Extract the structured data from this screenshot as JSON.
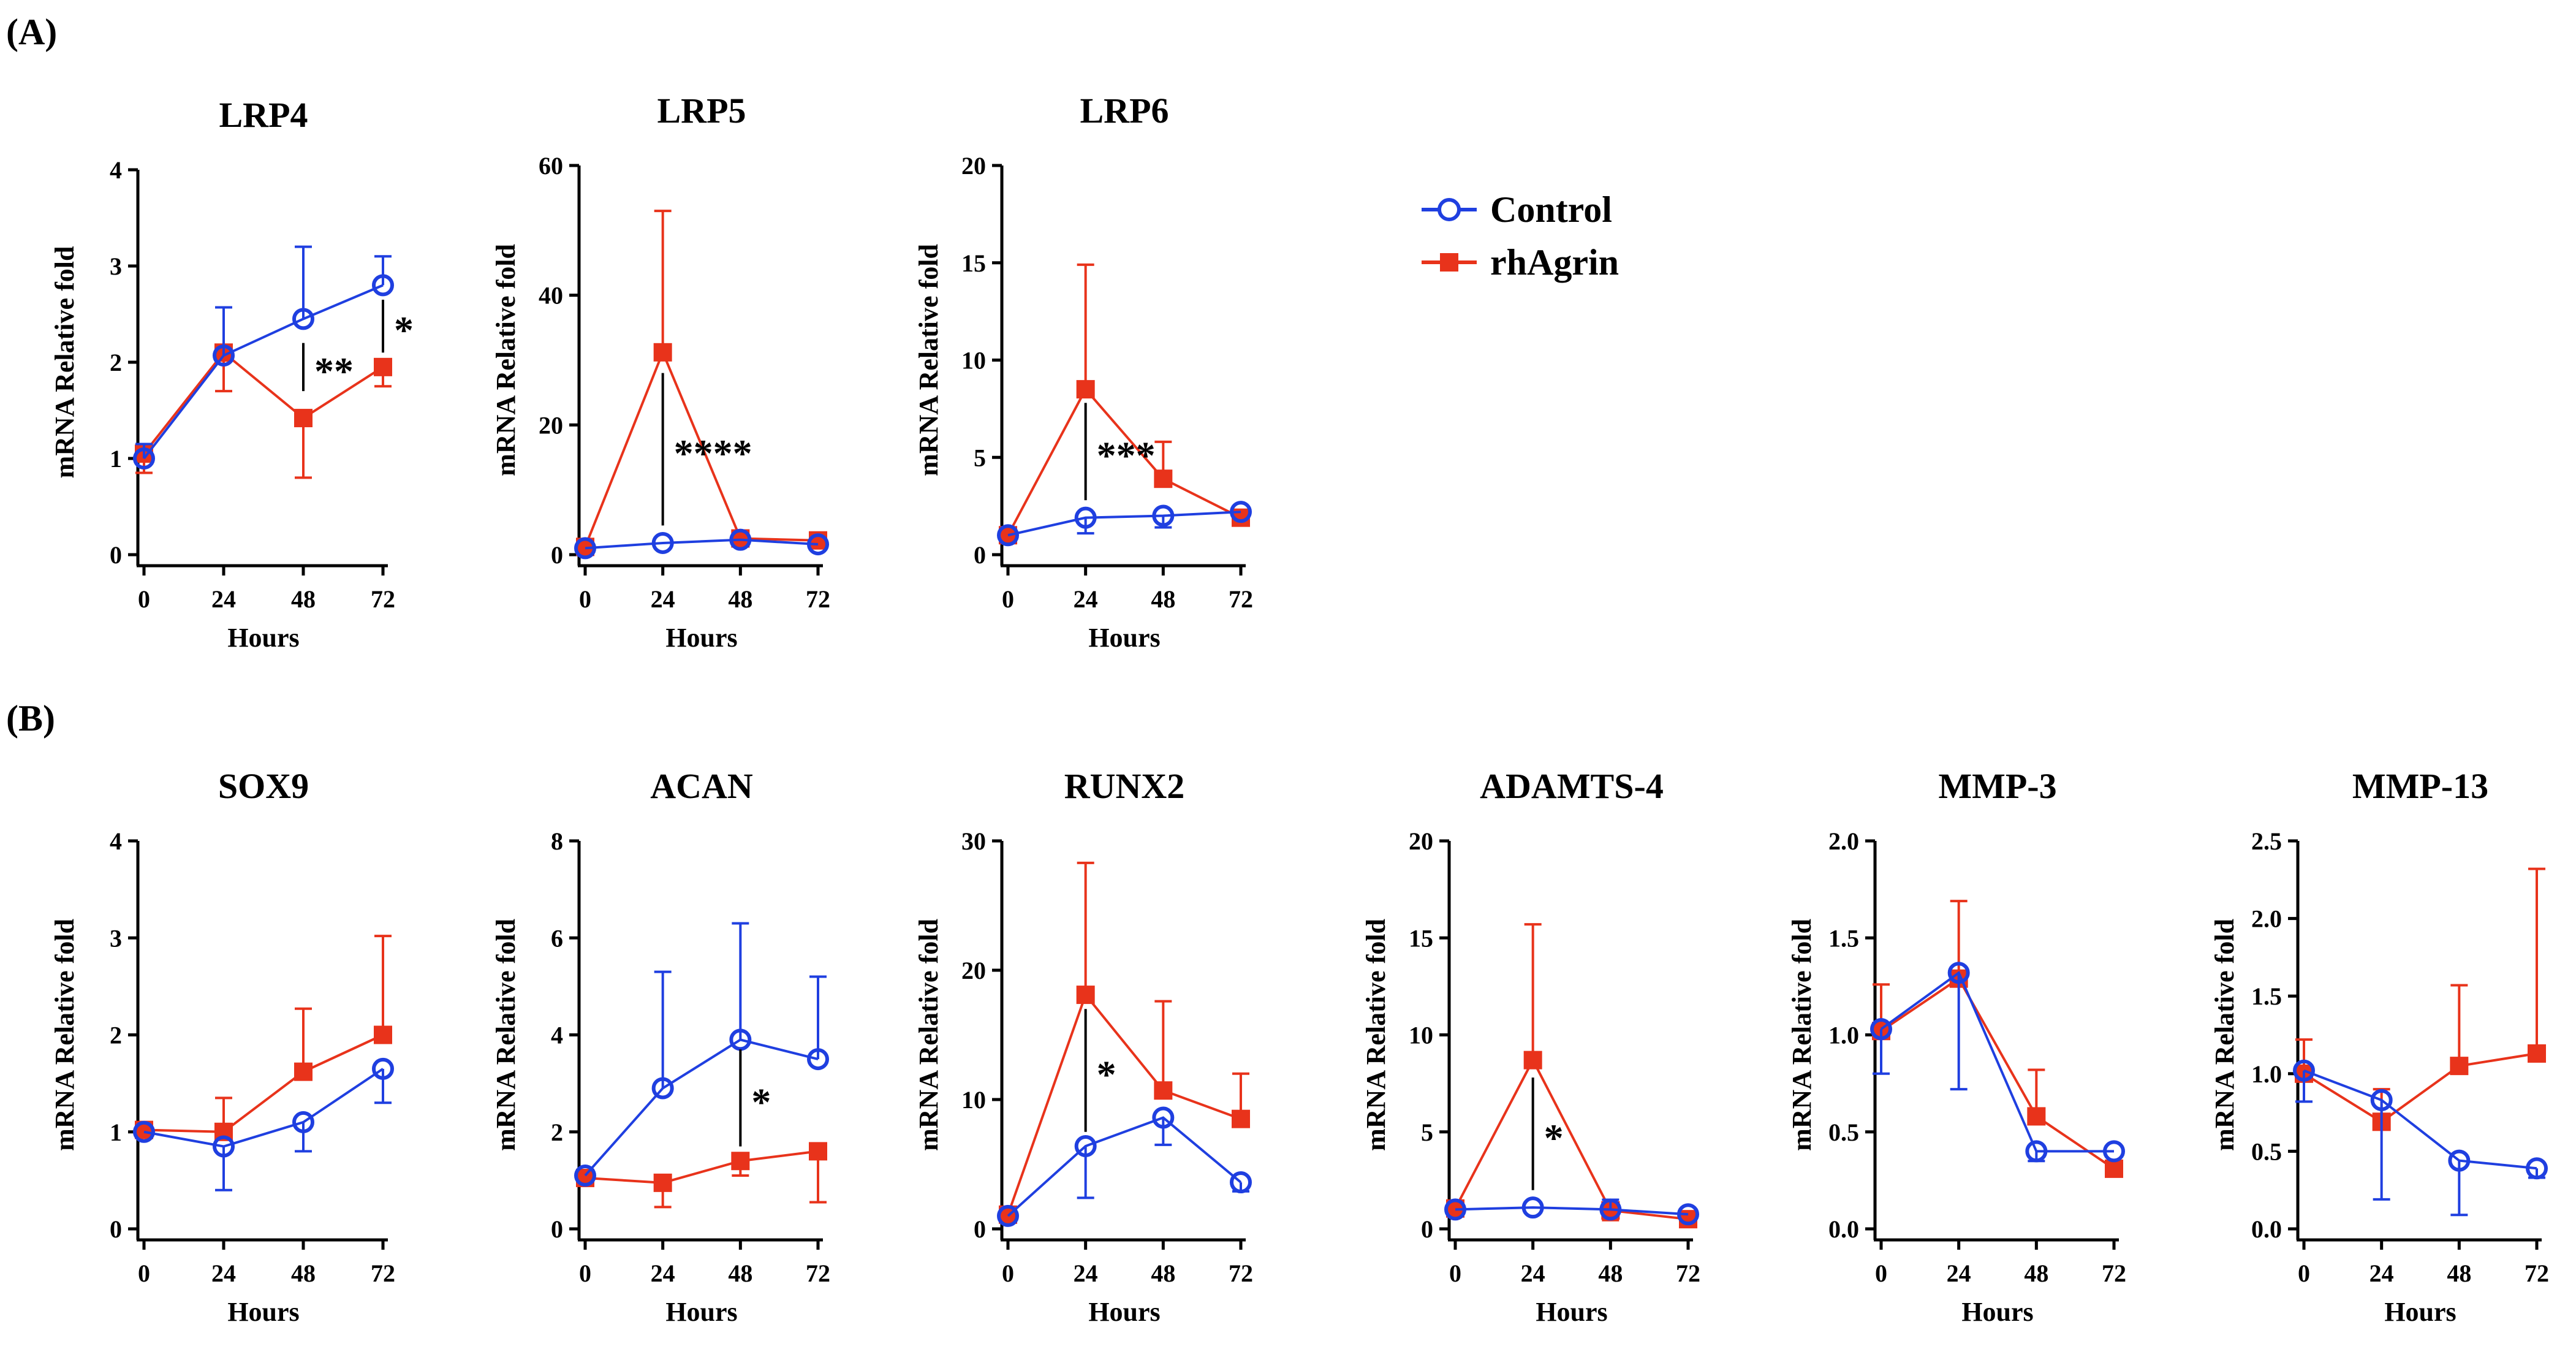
{
  "panel_labels": {
    "a": "(A)",
    "b": "(B)"
  },
  "legend": [
    {
      "label": "Control",
      "color": "#1f3fe0",
      "marker": "open-circle"
    },
    {
      "label": "rhAgrin",
      "color": "#e8331b",
      "marker": "filled-square"
    }
  ],
  "colors": {
    "control": "#1f3fe0",
    "rhagrin": "#e8331b",
    "axis": "#000000"
  },
  "chart_data": [
    {
      "type": "line",
      "title": "LRP4",
      "xlabel": "Hours",
      "ylabel": "mRNA Relative fold",
      "x": [
        0,
        24,
        48,
        72
      ],
      "ylim": [
        0,
        4
      ],
      "yticks": [
        "0",
        "1",
        "2",
        "3",
        "4"
      ],
      "series": [
        {
          "name": "Control",
          "values": [
            1.0,
            2.07,
            2.45,
            2.8
          ],
          "err_up": [
            0.15,
            0.5,
            0.75,
            0.3
          ],
          "err_down": [
            0,
            0,
            0,
            0
          ]
        },
        {
          "name": "rhAgrin",
          "values": [
            1.05,
            2.1,
            1.42,
            1.95
          ],
          "err_up": [
            0,
            0,
            0,
            0
          ],
          "err_down": [
            0.2,
            0.4,
            0.62,
            0.2
          ]
        }
      ],
      "annotations": [
        {
          "x": 48,
          "y_from": 1.7,
          "y_to": 2.2,
          "text": "**"
        },
        {
          "x": 72,
          "y_from": 2.1,
          "y_to": 2.65,
          "text": "*"
        }
      ]
    },
    {
      "type": "line",
      "title": "LRP5",
      "xlabel": "Hours",
      "ylabel": "mRNA Relative fold",
      "x": [
        0,
        24,
        48,
        72
      ],
      "ylim": [
        0,
        60
      ],
      "yticks": [
        "0",
        "20",
        "40",
        "60"
      ],
      "series": [
        {
          "name": "Control",
          "values": [
            1.0,
            1.8,
            2.3,
            1.6
          ],
          "err_up": [
            0,
            0,
            0,
            0
          ],
          "err_down": [
            0,
            0,
            0,
            0
          ]
        },
        {
          "name": "rhAgrin",
          "values": [
            1.2,
            31.2,
            2.5,
            2.2
          ],
          "err_up": [
            0,
            21.8,
            0,
            0.8
          ],
          "err_down": [
            0,
            0,
            0,
            0
          ]
        }
      ],
      "annotations": [
        {
          "x": 24,
          "y_from": 4.5,
          "y_to": 28,
          "text": "****"
        }
      ]
    },
    {
      "type": "line",
      "title": "LRP6",
      "xlabel": "Hours",
      "ylabel": "mRNA Relative fold",
      "x": [
        0,
        24,
        48,
        72
      ],
      "ylim": [
        0,
        20
      ],
      "yticks": [
        "0",
        "5",
        "10",
        "15",
        "20"
      ],
      "series": [
        {
          "name": "Control",
          "values": [
            1.0,
            1.9,
            2.0,
            2.2
          ],
          "err_up": [
            0,
            0,
            0,
            0
          ],
          "err_down": [
            0,
            0.8,
            0.6,
            0
          ]
        },
        {
          "name": "rhAgrin",
          "values": [
            1.0,
            8.5,
            3.9,
            1.9
          ],
          "err_up": [
            0,
            6.4,
            1.9,
            0
          ],
          "err_down": [
            0,
            0,
            0,
            0
          ]
        }
      ],
      "annotations": [
        {
          "x": 24,
          "y_from": 2.8,
          "y_to": 7.8,
          "text": "***"
        }
      ]
    },
    {
      "type": "line",
      "title": "SOX9",
      "xlabel": "Hours",
      "ylabel": "mRNA Relative fold",
      "x": [
        0,
        24,
        48,
        72
      ],
      "ylim": [
        0,
        4
      ],
      "yticks": [
        "0",
        "1",
        "2",
        "3",
        "4"
      ],
      "series": [
        {
          "name": "Control",
          "values": [
            1.0,
            0.85,
            1.1,
            1.65
          ],
          "err_up": [
            0,
            0,
            0,
            0
          ],
          "err_down": [
            0,
            0.45,
            0.3,
            0.35
          ]
        },
        {
          "name": "rhAgrin",
          "values": [
            1.02,
            1.0,
            1.62,
            2.0
          ],
          "err_up": [
            0,
            0.35,
            0.65,
            1.02
          ],
          "err_down": [
            0,
            0,
            0,
            0
          ]
        }
      ],
      "annotations": []
    },
    {
      "type": "line",
      "title": "ACAN",
      "xlabel": "Hours",
      "ylabel": "mRNA Relative fold",
      "x": [
        0,
        24,
        48,
        72
      ],
      "ylim": [
        0,
        8
      ],
      "yticks": [
        "0",
        "2",
        "4",
        "6",
        "8"
      ],
      "series": [
        {
          "name": "Control",
          "values": [
            1.1,
            2.9,
            3.9,
            3.5
          ],
          "err_up": [
            0,
            2.4,
            2.4,
            1.7
          ],
          "err_down": [
            0,
            0,
            0,
            0
          ]
        },
        {
          "name": "rhAgrin",
          "values": [
            1.05,
            0.95,
            1.4,
            1.6
          ],
          "err_up": [
            0,
            0,
            0,
            0
          ],
          "err_down": [
            0,
            0.5,
            0.3,
            1.05
          ]
        }
      ],
      "annotations": [
        {
          "x": 48,
          "y_from": 1.7,
          "y_to": 3.7,
          "text": "*"
        }
      ]
    },
    {
      "type": "line",
      "title": "RUNX2",
      "xlabel": "Hours",
      "ylabel": "mRNA Relative fold",
      "x": [
        0,
        24,
        48,
        72
      ],
      "ylim": [
        0,
        30
      ],
      "yticks": [
        "0",
        "10",
        "20",
        "30"
      ],
      "series": [
        {
          "name": "Control",
          "values": [
            1.0,
            6.4,
            8.6,
            3.6
          ],
          "err_up": [
            0,
            0,
            0,
            0
          ],
          "err_down": [
            0,
            4.0,
            2.1,
            0.7
          ]
        },
        {
          "name": "rhAgrin",
          "values": [
            1.1,
            18.1,
            10.7,
            8.5
          ],
          "err_up": [
            0,
            10.2,
            6.9,
            3.5
          ],
          "err_down": [
            0,
            0,
            0,
            0
          ]
        }
      ],
      "annotations": [
        {
          "x": 24,
          "y_from": 7.5,
          "y_to": 17,
          "text": "*"
        }
      ]
    },
    {
      "type": "line",
      "title": "ADAMTS-4",
      "xlabel": "Hours",
      "ylabel": "mRNA Relative fold",
      "x": [
        0,
        24,
        48,
        72
      ],
      "ylim": [
        0,
        20
      ],
      "yticks": [
        "0",
        "5",
        "10",
        "15",
        "20"
      ],
      "series": [
        {
          "name": "Control",
          "values": [
            1.0,
            1.1,
            1.0,
            0.75
          ],
          "err_up": [
            0,
            0,
            0.5,
            0
          ],
          "err_down": [
            0,
            0,
            0,
            0
          ]
        },
        {
          "name": "rhAgrin",
          "values": [
            1.05,
            8.7,
            0.95,
            0.5
          ],
          "err_up": [
            0,
            7.0,
            0,
            0
          ],
          "err_down": [
            0,
            0,
            0.5,
            0
          ]
        }
      ],
      "annotations": [
        {
          "x": 24,
          "y_from": 2.0,
          "y_to": 7.8,
          "text": "*"
        }
      ]
    },
    {
      "type": "line",
      "title": "MMP-3",
      "xlabel": "Hours",
      "ylabel": "mRNA Relative fold",
      "x": [
        0,
        24,
        48,
        72
      ],
      "ylim": [
        0,
        2
      ],
      "yticks": [
        "0.0",
        "0.5",
        "1.0",
        "1.5",
        "2.0"
      ],
      "series": [
        {
          "name": "Control",
          "values": [
            1.03,
            1.32,
            0.4,
            0.4
          ],
          "err_up": [
            0,
            0,
            0,
            0
          ],
          "err_down": [
            0.23,
            0.6,
            0.05,
            0
          ]
        },
        {
          "name": "rhAgrin",
          "values": [
            1.02,
            1.29,
            0.58,
            0.31
          ],
          "err_up": [
            0.24,
            0.4,
            0.24,
            0
          ],
          "err_down": [
            0,
            0,
            0,
            0
          ]
        }
      ],
      "annotations": []
    },
    {
      "type": "line",
      "title": "MMP-13",
      "xlabel": "Hours",
      "ylabel": "mRNA Relative fold",
      "x": [
        0,
        24,
        48,
        72
      ],
      "ylim": [
        0,
        2.5
      ],
      "yticks": [
        "0.0",
        "0.5",
        "1.0",
        "1.5",
        "2.0",
        "2.5"
      ],
      "series": [
        {
          "name": "Control",
          "values": [
            1.02,
            0.83,
            0.44,
            0.39
          ],
          "err_up": [
            0,
            0,
            0,
            0
          ],
          "err_down": [
            0.2,
            0.64,
            0.35,
            0.06
          ]
        },
        {
          "name": "rhAgrin",
          "values": [
            1.0,
            0.69,
            1.05,
            1.13
          ],
          "err_up": [
            0.22,
            0.21,
            0.52,
            1.19
          ],
          "err_down": [
            0,
            0,
            0,
            0
          ]
        }
      ],
      "annotations": []
    }
  ]
}
